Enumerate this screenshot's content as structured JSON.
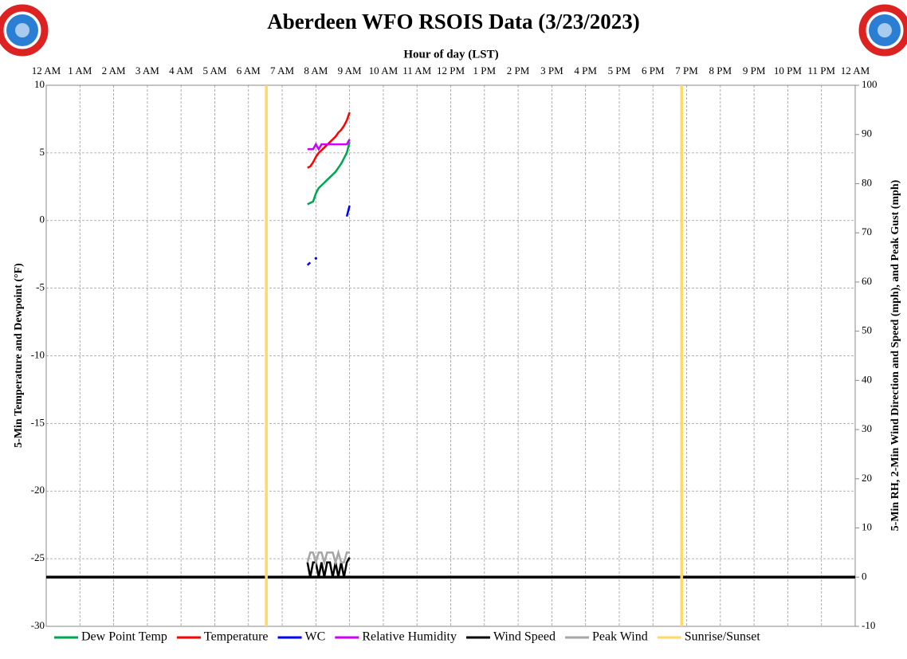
{
  "chart_data": {
    "type": "line",
    "title": "Aberdeen WFO RSOIS Data (3/23/2023)",
    "x_label": "Hour of day (LST)",
    "y_label": "5-Min Temperature  and Dewpoint (°F)",
    "y2_label": "5-Min RH, 2-Min Wind Direction and Speed (mph), and Peak Gust (mph)",
    "xlim": [
      0,
      24
    ],
    "xticks": [
      {
        "value": 0,
        "label": "12 AM"
      },
      {
        "value": 1,
        "label": "1 AM"
      },
      {
        "value": 2,
        "label": "2 AM"
      },
      {
        "value": 3,
        "label": "3 AM"
      },
      {
        "value": 4,
        "label": "4 AM"
      },
      {
        "value": 5,
        "label": "5 AM"
      },
      {
        "value": 6,
        "label": "6 AM"
      },
      {
        "value": 7,
        "label": "7 AM"
      },
      {
        "value": 8,
        "label": "8 AM"
      },
      {
        "value": 9,
        "label": "9 AM"
      },
      {
        "value": 10,
        "label": "10 AM"
      },
      {
        "value": 11,
        "label": "11 AM"
      },
      {
        "value": 12,
        "label": "12 PM"
      },
      {
        "value": 13,
        "label": "1 PM"
      },
      {
        "value": 14,
        "label": "2 PM"
      },
      {
        "value": 15,
        "label": "3 PM"
      },
      {
        "value": 16,
        "label": "4 PM"
      },
      {
        "value": 17,
        "label": "5 PM"
      },
      {
        "value": 18,
        "label": "6 PM"
      },
      {
        "value": 19,
        "label": "7 PM"
      },
      {
        "value": 20,
        "label": "8 PM"
      },
      {
        "value": 21,
        "label": "9 PM"
      },
      {
        "value": 22,
        "label": "10 PM"
      },
      {
        "value": 23,
        "label": "11 PM"
      },
      {
        "value": 24,
        "label": "12 AM"
      }
    ],
    "ylim": [
      -30,
      10
    ],
    "yticks": [
      -30,
      -25,
      -20,
      -15,
      -10,
      -5,
      0,
      5,
      10
    ],
    "y2lim": [
      -10,
      100
    ],
    "y2ticks": [
      -10,
      0,
      10,
      20,
      30,
      40,
      50,
      60,
      70,
      80,
      90,
      100
    ],
    "grid": true,
    "legend": "bottom",
    "x": [
      7.75,
      7.833,
      7.917,
      8.0,
      8.083,
      8.167,
      8.25,
      8.333,
      8.417,
      8.5,
      8.583,
      8.667,
      8.75,
      8.833,
      8.917,
      9.0
    ],
    "series": [
      {
        "name": "Dew Point Temp",
        "color": "#00a550",
        "values": [
          1.2,
          1.3,
          1.4,
          2.0,
          2.4,
          2.6,
          2.8,
          3.0,
          3.2,
          3.4,
          3.6,
          3.9,
          4.2,
          4.6,
          5.0,
          5.8
        ]
      },
      {
        "name": "Temperature",
        "color": "#ff0000",
        "values": [
          3.9,
          4.0,
          4.3,
          4.7,
          5.0,
          5.2,
          5.4,
          5.6,
          5.8,
          6.0,
          6.2,
          6.5,
          6.7,
          7.0,
          7.4,
          8.0
        ]
      },
      {
        "name": "WC",
        "color": "#0000ff",
        "values": [
          -3.3,
          -3.1,
          null,
          -2.8,
          null,
          null,
          null,
          null,
          null,
          null,
          null,
          null,
          null,
          null,
          0.3,
          1.1
        ]
      },
      {
        "name": "Relative Humidity",
        "color": "#cc00ff",
        "axis": "y2",
        "values": [
          87,
          87,
          87,
          88,
          87,
          88,
          88,
          88,
          88,
          88,
          88,
          88,
          88,
          88,
          88,
          89
        ]
      },
      {
        "name": "Wind Speed",
        "color": "#000000",
        "axis": "y2",
        "values": [
          3,
          0,
          3,
          3,
          0,
          3,
          0,
          3,
          3,
          0,
          3,
          0,
          3,
          0,
          3,
          4
        ]
      },
      {
        "name": "Peak Wind",
        "color": "#a6a6a6",
        "axis": "y2",
        "values": [
          3,
          5,
          5,
          3,
          5,
          5,
          3,
          5,
          5,
          5,
          3,
          5,
          3,
          3,
          5,
          5
        ]
      }
    ],
    "sunrise_sunset": {
      "name": "Sunrise/Sunset",
      "color": "#ffd966",
      "x": [
        6.53,
        18.85
      ]
    }
  }
}
